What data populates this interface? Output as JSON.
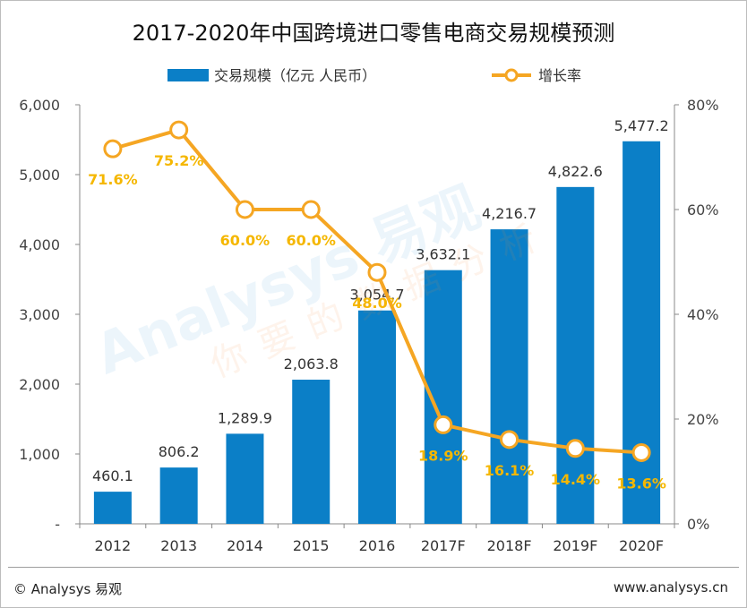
{
  "chart_data": {
    "type": "bar+line",
    "title": "2017-2020年中国跨境进口零售电商交易规模预测",
    "categories": [
      "2012",
      "2013",
      "2014",
      "2015",
      "2016",
      "2017F",
      "2018F",
      "2019F",
      "2020F"
    ],
    "series": [
      {
        "name": "交易规模（亿元 人民币）",
        "type": "bar",
        "axis": "left",
        "values": [
          460.1,
          806.2,
          1289.9,
          2063.8,
          3054.7,
          3632.1,
          4216.7,
          4822.6,
          5477.2
        ],
        "labels": [
          "460.1",
          "806.2",
          "1,289.9",
          "2,063.8",
          "3,054.7",
          "3,632.1",
          "4,216.7",
          "4,822.6",
          "5,477.2"
        ]
      },
      {
        "name": "增长率",
        "type": "line",
        "axis": "right",
        "values": [
          71.6,
          75.2,
          60.0,
          60.0,
          48.0,
          18.9,
          16.1,
          14.4,
          13.6
        ],
        "labels": [
          "71.6%",
          "75.2%",
          "60.0%",
          "60.0%",
          "48.0%",
          "18.9%",
          "16.1%",
          "14.4%",
          "13.6%"
        ]
      }
    ],
    "y_left": {
      "range": [
        0,
        6000
      ],
      "ticks": [
        "-",
        "1,000",
        "2,000",
        "3,000",
        "4,000",
        "5,000",
        "6,000"
      ]
    },
    "y_right": {
      "range": [
        0,
        80
      ],
      "ticks": [
        "0%",
        "20%",
        "40%",
        "60%",
        "80%"
      ]
    },
    "legend_position": "top-center",
    "grid": false,
    "colors": {
      "bar": "#0b7fc7",
      "line": "#f5a623",
      "point_label": "#f5b700",
      "marker_fill": "#ffffff"
    }
  },
  "footer": {
    "copyright": "© Analysys 易观",
    "site": "www.analysys.cn"
  },
  "watermark": {
    "brand": "Analysys 易观",
    "slogan": "你要的数据分析"
  }
}
